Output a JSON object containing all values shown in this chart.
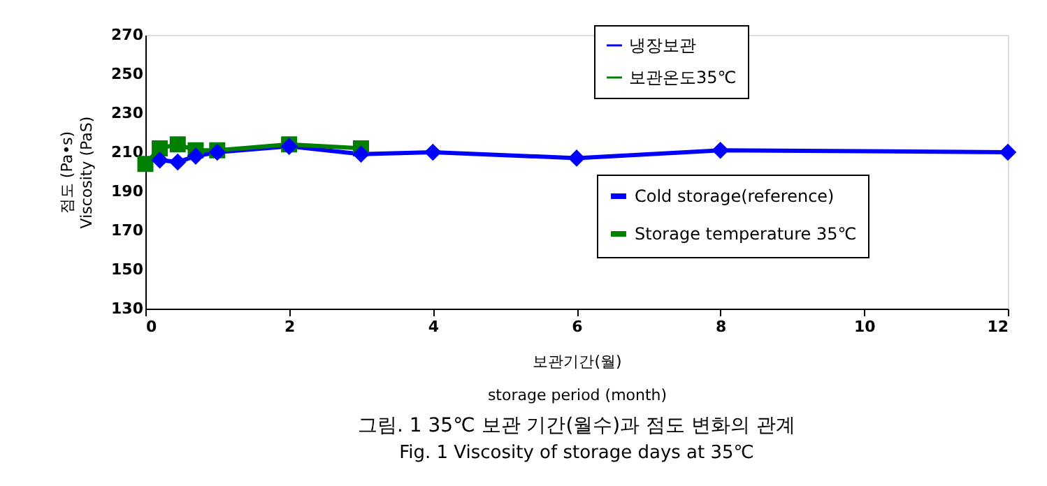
{
  "chart_data": {
    "type": "line",
    "title": "그림. 1 35℃ 보관 기간(월수)과 점도 변화의 관계",
    "subtitle": "Fig. 1 Viscosity of storage days at 35℃",
    "xlabel": "보관기간(월)\nstorage period (month)",
    "ylabel": "점도 (Pa•s)\nViscosity (PaS)",
    "xlim": [
      0,
      12
    ],
    "xticks": [
      0,
      2,
      4,
      6,
      8,
      10,
      12
    ],
    "ylim": [
      130,
      270
    ],
    "yticks": [
      130,
      150,
      170,
      190,
      210,
      230,
      250,
      270
    ],
    "grid": false,
    "legend": "top right",
    "annotations": [
      "Cold storage(reference)",
      "Storage temperature 35℃"
    ],
    "series": [
      {
        "name": "냉장보관",
        "color": "#0000ff",
        "marker": "diamond",
        "x": [
          0.2,
          0.45,
          0.7,
          1,
          2,
          3,
          4,
          6,
          8,
          12
        ],
        "values": [
          206,
          205,
          208,
          210,
          213,
          209,
          210,
          207,
          211,
          210
        ]
      },
      {
        "name": "보관온도35℃",
        "color": "#008000",
        "marker": "square",
        "x": [
          0,
          0.2,
          0.45,
          0.7,
          1,
          2,
          3
        ],
        "values": [
          204,
          212,
          214,
          211,
          211,
          214,
          212
        ]
      }
    ]
  }
}
